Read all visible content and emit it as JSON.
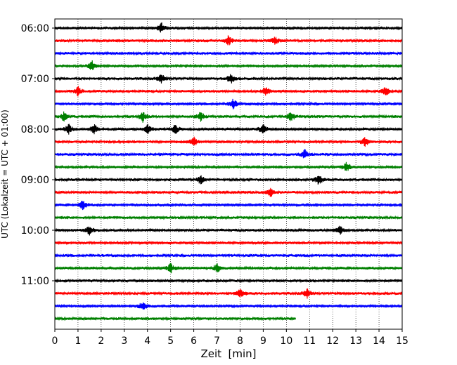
{
  "chart_data": {
    "type": "line",
    "title": "",
    "xlabel": "Zeit  [min]",
    "ylabel": "UTC (Lokalzeit = UTC + 01:00)",
    "xlim": [
      0,
      15
    ],
    "x_ticks": [
      "0",
      "1",
      "2",
      "3",
      "4",
      "5",
      "6",
      "7",
      "8",
      "9",
      "10",
      "11",
      "12",
      "13",
      "14",
      "15"
    ],
    "y_ticks": [
      "06:00",
      "07:00",
      "08:00",
      "09:00",
      "10:00",
      "11:00"
    ],
    "grid": "vertical-dotted",
    "trace_interval_min": 15,
    "trace_colors": [
      "#000000",
      "#ff0000",
      "#0000ff",
      "#008000"
    ],
    "start_time": "06:00",
    "last_trace_end_min": 10.4,
    "series": [
      {
        "time": "06:00",
        "color": "#000000",
        "events_min": [
          4.6
        ]
      },
      {
        "time": "06:15",
        "color": "#ff0000",
        "events_min": [
          7.5,
          9.5
        ]
      },
      {
        "time": "06:30",
        "color": "#0000ff",
        "events_min": []
      },
      {
        "time": "06:45",
        "color": "#008000",
        "events_min": [
          1.6
        ]
      },
      {
        "time": "07:00",
        "color": "#000000",
        "events_min": [
          4.6,
          7.6
        ]
      },
      {
        "time": "07:15",
        "color": "#ff0000",
        "events_min": [
          1.0,
          9.1,
          14.3
        ]
      },
      {
        "time": "07:30",
        "color": "#0000ff",
        "events_min": [
          7.7
        ]
      },
      {
        "time": "07:45",
        "color": "#008000",
        "events_min": [
          0.4,
          3.8,
          6.3,
          10.2
        ]
      },
      {
        "time": "08:00",
        "color": "#000000",
        "events_min": [
          0.6,
          1.7,
          4.0,
          5.2,
          9.0
        ]
      },
      {
        "time": "08:15",
        "color": "#ff0000",
        "events_min": [
          6.0,
          13.4
        ]
      },
      {
        "time": "08:30",
        "color": "#0000ff",
        "events_min": [
          10.8
        ]
      },
      {
        "time": "08:45",
        "color": "#008000",
        "events_min": [
          12.6
        ]
      },
      {
        "time": "09:00",
        "color": "#000000",
        "events_min": [
          6.3,
          11.4
        ]
      },
      {
        "time": "09:15",
        "color": "#ff0000",
        "events_min": [
          9.3
        ]
      },
      {
        "time": "09:30",
        "color": "#0000ff",
        "events_min": [
          1.2
        ]
      },
      {
        "time": "09:45",
        "color": "#008000",
        "events_min": []
      },
      {
        "time": "10:00",
        "color": "#000000",
        "events_min": [
          1.5,
          12.3
        ]
      },
      {
        "time": "10:15",
        "color": "#ff0000",
        "events_min": []
      },
      {
        "time": "10:30",
        "color": "#0000ff",
        "events_min": []
      },
      {
        "time": "10:45",
        "color": "#008000",
        "events_min": [
          5.0,
          7.0
        ]
      },
      {
        "time": "11:00",
        "color": "#000000",
        "events_min": []
      },
      {
        "time": "11:15",
        "color": "#ff0000",
        "events_min": [
          8.0,
          10.9
        ]
      },
      {
        "time": "11:30",
        "color": "#0000ff",
        "events_min": [
          3.8
        ]
      },
      {
        "time": "11:45",
        "color": "#008000",
        "events_min": []
      }
    ]
  }
}
